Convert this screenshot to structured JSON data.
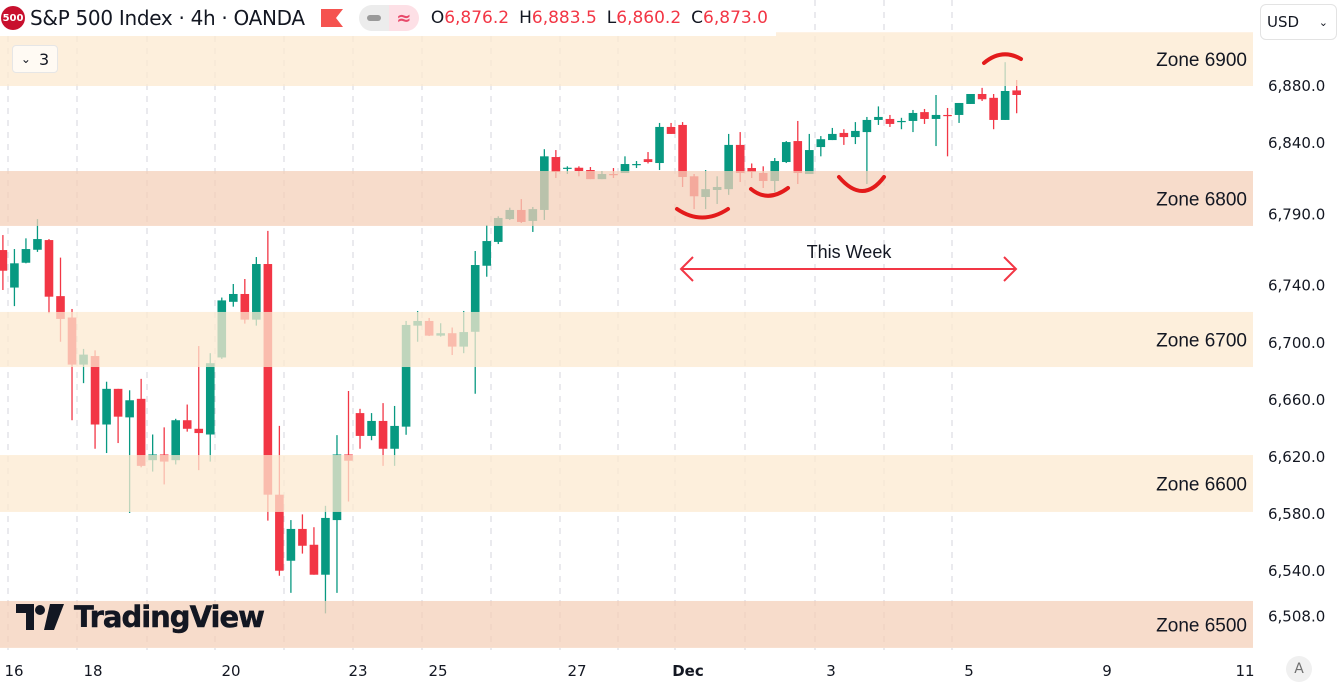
{
  "header": {
    "symbol_badge": "500",
    "title": "S&P 500 Index · 4h · OANDA",
    "ohlc": [
      {
        "label": "O",
        "value": "6,876.2"
      },
      {
        "label": "H",
        "value": "6,883.5"
      },
      {
        "label": "L",
        "value": "6,860.2"
      },
      {
        "label": "C",
        "value": "6,873.0"
      }
    ],
    "indicators_collapsed_count": "3",
    "currency": "USD",
    "auto_scale_label": "A",
    "watermark": "TradingView"
  },
  "colors": {
    "up": "#089981",
    "down": "#f23645",
    "zone_light": "#fdefdc",
    "zone_dark": "#f7dccb",
    "annotation": "#e31b1b"
  },
  "chart_data": {
    "type": "candlestick",
    "interval": "4h",
    "ylim": [
      6485,
      6917
    ],
    "price_ticks": [
      "6,880.0",
      "6,840.0",
      "6,790.0",
      "6,740.0",
      "6,700.0",
      "6,660.0",
      "6,620.0",
      "6,580.0",
      "6,540.0",
      "6,508.0"
    ],
    "price_tick_values": [
      6880,
      6840,
      6790,
      6740,
      6700,
      6660,
      6620,
      6580,
      6540,
      6508
    ],
    "time_ticks": [
      "16",
      "18",
      "20",
      "23",
      "25",
      "27",
      "Dec",
      "3",
      "5",
      "9",
      "11"
    ],
    "grid": "vertical dashed",
    "candles_ohlc": [
      [
        6764.3,
        6774.8,
        6736.3,
        6749.8
      ],
      [
        6738,
        6765,
        6725,
        6755
      ],
      [
        6755.4,
        6772.5,
        6755,
        6765
      ],
      [
        6764.5,
        6786,
        6763,
        6772
      ],
      [
        6771.3,
        6772,
        6720,
        6731.6
      ],
      [
        6732,
        6759,
        6700,
        6716
      ],
      [
        6717,
        6723,
        6645,
        6684
      ],
      [
        6684,
        6695,
        6671,
        6691
      ],
      [
        6690,
        6694,
        6625,
        6642
      ],
      [
        6642,
        6672,
        6622,
        6667
      ],
      [
        6667,
        6667,
        6629,
        6647.5
      ],
      [
        6647,
        6666,
        6580,
        6659
      ],
      [
        6660,
        6674,
        6612,
        6613
      ],
      [
        6617,
        6635,
        6609,
        6621
      ],
      [
        6621,
        6640,
        6600,
        6616
      ],
      [
        6617,
        6646,
        6614,
        6645
      ],
      [
        6645,
        6656,
        6637,
        6639
      ],
      [
        6639,
        6697,
        6610,
        6636
      ],
      [
        6635,
        6692,
        6616,
        6685
      ],
      [
        6689,
        6731,
        6688,
        6729
      ],
      [
        6728,
        6740.5,
        6724.6,
        6733.5
      ],
      [
        6733.5,
        6744,
        6712.7,
        6715.5
      ],
      [
        6715.5,
        6759.4,
        6711.3,
        6754.5
      ],
      [
        6754.5,
        6777.7,
        6574.6,
        6592.8
      ],
      [
        6592.8,
        6641,
        6536,
        6539.5
      ],
      [
        6546.5,
        6575,
        6524,
        6568.8
      ],
      [
        6568.8,
        6579,
        6551.5,
        6557
      ],
      [
        6557.7,
        6570,
        6536.7,
        6536.7
      ],
      [
        6536.7,
        6585,
        6509.6,
        6576.5
      ],
      [
        6575,
        6634.6,
        6524,
        6621
      ],
      [
        6621,
        6665.5,
        6588,
        6616.6
      ],
      [
        6650,
        6653,
        6625,
        6634
      ],
      [
        6634,
        6650,
        6631,
        6644.5
      ],
      [
        6644.5,
        6657,
        6613,
        6625
      ],
      [
        6625,
        6655,
        6613,
        6641
      ],
      [
        6640.5,
        6714.6,
        6634.8,
        6711.8
      ],
      [
        6711.3,
        6721.6,
        6700,
        6714.6
      ],
      [
        6714.6,
        6716.7,
        6704,
        6704.3
      ],
      [
        6704.3,
        6713,
        6703.6,
        6706
      ],
      [
        6706,
        6710,
        6690.7,
        6696.6
      ],
      [
        6696.6,
        6721.6,
        6692,
        6706.8
      ],
      [
        6707,
        6763.6,
        6663.6,
        6753.8
      ],
      [
        6753.3,
        6781.9,
        6745.6,
        6770.6
      ],
      [
        6770,
        6788,
        6768.5,
        6786.8
      ],
      [
        6786,
        6794,
        6785.4,
        6792.4
      ],
      [
        6792.4,
        6800,
        6783.3,
        6784
      ],
      [
        6784.7,
        6794.5,
        6777,
        6793
      ],
      [
        6792.4,
        6835,
        6785.4,
        6830
      ],
      [
        6829.5,
        6834.4,
        6814.8,
        6819
      ],
      [
        6821.4,
        6823,
        6817.6,
        6822
      ],
      [
        6822,
        6823,
        6816,
        6819.7
      ],
      [
        6820.4,
        6822.5,
        6814,
        6814
      ],
      [
        6814,
        6819.7,
        6814,
        6817.6
      ],
      [
        6817.6,
        6821.8,
        6814.8,
        6817
      ],
      [
        6818.3,
        6830,
        6818.3,
        6824.6
      ],
      [
        6824,
        6826.7,
        6821.8,
        6824.6
      ],
      [
        6828,
        6833,
        6825,
        6826
      ],
      [
        6825.3,
        6853.4,
        6820.4,
        6850.6
      ],
      [
        6850.6,
        6853.4,
        6845.7,
        6845.7
      ],
      [
        6852,
        6854,
        6808.5,
        6815.5
      ],
      [
        6816,
        6817.6,
        6793,
        6802
      ],
      [
        6801.5,
        6820.4,
        6793,
        6807
      ],
      [
        6806.4,
        6816,
        6796.6,
        6808.5
      ],
      [
        6807,
        6845.7,
        6803,
        6838
      ],
      [
        6838,
        6847,
        6812,
        6818.3
      ],
      [
        6821.8,
        6825,
        6814.8,
        6819
      ],
      [
        6818.3,
        6823,
        6807.8,
        6812.7
      ],
      [
        6812.7,
        6828.8,
        6805,
        6826.7
      ],
      [
        6826,
        6840.7,
        6825.3,
        6840
      ],
      [
        6840.7,
        6854.8,
        6810.6,
        6818.3
      ],
      [
        6817.6,
        6845.7,
        6817.6,
        6834.4
      ],
      [
        6836.5,
        6844.2,
        6830,
        6842
      ],
      [
        6841.4,
        6849.9,
        6841.4,
        6845.7
      ],
      [
        6846.4,
        6849,
        6838,
        6843.5
      ],
      [
        6843.5,
        6854,
        6838.6,
        6847.8
      ],
      [
        6847,
        6857.6,
        6810.6,
        6855.5
      ],
      [
        6855.5,
        6865,
        6852,
        6857.6
      ],
      [
        6856.2,
        6859,
        6850.6,
        6852.7
      ],
      [
        6854,
        6857,
        6849,
        6854.8
      ],
      [
        6854.8,
        6862.5,
        6847,
        6860.4
      ],
      [
        6861,
        6863.2,
        6852.7,
        6856.2
      ],
      [
        6856.2,
        6873,
        6837.2,
        6859
      ],
      [
        6859,
        6863.9,
        6830,
        6858.3
      ],
      [
        6859,
        6867.4,
        6853.4,
        6867.4
      ],
      [
        6866.7,
        6873.7,
        6866.7,
        6873.7
      ],
      [
        6873.7,
        6878,
        6868.8,
        6870
      ],
      [
        6871,
        6873.7,
        6849,
        6855.5
      ],
      [
        6855.5,
        6896,
        6855.5,
        6875.8
      ],
      [
        6876.2,
        6883.5,
        6860.2,
        6873.0
      ]
    ],
    "zones": [
      {
        "label": "Zone 6900",
        "low": 6879.3,
        "high": 6917,
        "shade": "light"
      },
      {
        "label": "Zone 6800",
        "low": 6781.2,
        "high": 6819.7,
        "shade": "dark"
      },
      {
        "label": "Zone 6700",
        "low": 6682.3,
        "high": 6720.9,
        "shade": "light"
      },
      {
        "label": "Zone 6600",
        "low": 6580.7,
        "high": 6620.6,
        "shade": "light"
      },
      {
        "label": "Zone 6500",
        "low": 6485.4,
        "high": 6518.3,
        "shade": "dark"
      }
    ],
    "annotations": {
      "range_label": "This Week",
      "range_price": 6751
    }
  }
}
